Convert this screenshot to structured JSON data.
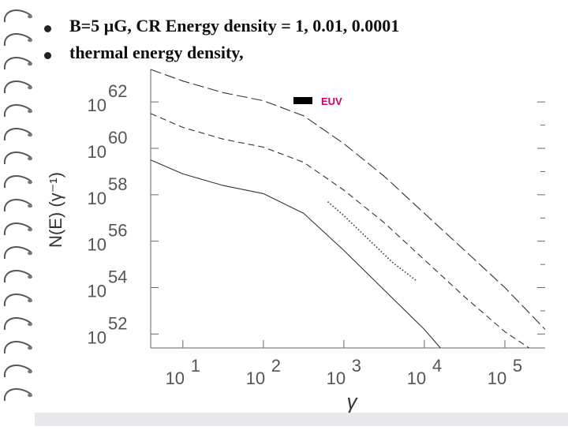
{
  "slide": {
    "bullets": [
      {
        "prefix": "B=5 ",
        "mu": "μ",
        "rest": "G, CR Energy density = 1, 0.01, 0.0001"
      },
      {
        "prefix": "thermal energy density,",
        "mu": "",
        "rest": ""
      }
    ]
  },
  "chart_data": {
    "type": "line",
    "title": "",
    "xlabel": "γ",
    "ylabel": "N(E)  (γ⁻¹)",
    "x_scale": "log",
    "y_scale": "log",
    "xlim_log10": [
      0.6,
      5.5
    ],
    "ylim_log10": [
      51.4,
      63.4
    ],
    "x_ticks": [
      {
        "base": "10",
        "exp": "1",
        "log": 1
      },
      {
        "base": "10",
        "exp": "2",
        "log": 2
      },
      {
        "base": "10",
        "exp": "3",
        "log": 3
      },
      {
        "base": "10",
        "exp": "4",
        "log": 4
      },
      {
        "base": "10",
        "exp": "5",
        "log": 5
      }
    ],
    "y_ticks": [
      {
        "base": "10",
        "exp": "62",
        "log": 62
      },
      {
        "base": "10",
        "exp": "60",
        "log": 60
      },
      {
        "base": "10",
        "exp": "58",
        "log": 58
      },
      {
        "base": "10",
        "exp": "56",
        "log": 56
      },
      {
        "base": "10",
        "exp": "54",
        "log": 54
      },
      {
        "base": "10",
        "exp": "52",
        "log": 52
      }
    ],
    "legend": {
      "label": "EUV",
      "color": "#cc0066",
      "marker_color": "#000000"
    },
    "series": [
      {
        "name": "CR energy density 1",
        "style": "longdash",
        "x_log": [
          0.6,
          1.0,
          1.5,
          2.0,
          2.5,
          3.0,
          3.5,
          4.0,
          4.5,
          5.0,
          5.5
        ],
        "y_log": [
          63.5,
          62.9,
          62.4,
          62.05,
          61.4,
          60.2,
          58.8,
          57.2,
          55.6,
          54.0,
          52.2
        ]
      },
      {
        "name": "CR energy density 0.01",
        "style": "dash",
        "x_log": [
          0.6,
          1.0,
          1.5,
          2.0,
          2.5,
          3.0,
          3.5,
          4.0,
          4.5,
          5.0,
          5.3
        ],
        "y_log": [
          61.5,
          60.9,
          60.4,
          60.05,
          59.4,
          58.2,
          56.8,
          55.2,
          53.6,
          52.1,
          51.2
        ]
      },
      {
        "name": "CR energy density 0.0001",
        "style": "solid",
        "x_log": [
          0.6,
          1.0,
          1.5,
          2.0,
          2.5,
          3.0,
          3.5,
          4.0,
          4.2
        ],
        "y_log": [
          59.5,
          58.9,
          58.4,
          58.05,
          57.2,
          55.6,
          53.9,
          52.2,
          51.4
        ]
      },
      {
        "name": "thermal",
        "style": "dotted",
        "x_log": [
          2.8,
          3.0,
          3.3,
          3.6,
          3.9
        ],
        "y_log": [
          57.7,
          57.1,
          56.1,
          55.1,
          54.3
        ]
      }
    ]
  }
}
